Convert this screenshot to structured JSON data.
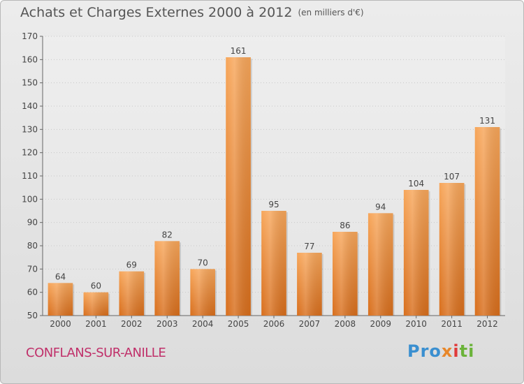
{
  "title": "Achats et Charges Externes 2000 à 2012",
  "unit_label": "(en milliers d'€)",
  "commune": "CONFLANS-SUR-ANILLE",
  "logo": {
    "p1": "Pro",
    "p2": "x",
    "p3": "i",
    "p4": "ti"
  },
  "colors": {
    "bar_light": "#f7a65a",
    "bar_dark": "#d86e1c",
    "title": "#555555",
    "commune": "#c0306a"
  },
  "chart_data": {
    "type": "bar",
    "categories": [
      "2000",
      "2001",
      "2002",
      "2003",
      "2004",
      "2005",
      "2006",
      "2007",
      "2008",
      "2009",
      "2010",
      "2011",
      "2012"
    ],
    "values": [
      64,
      60,
      69,
      82,
      70,
      161,
      95,
      77,
      86,
      94,
      104,
      107,
      131
    ],
    "ylim": [
      50,
      170
    ],
    "yticks": [
      50,
      60,
      70,
      80,
      90,
      100,
      110,
      120,
      130,
      140,
      150,
      160,
      170
    ],
    "grid": true,
    "title": "Achats et Charges Externes 2000 à 2012",
    "xlabel": "",
    "ylabel": ""
  }
}
